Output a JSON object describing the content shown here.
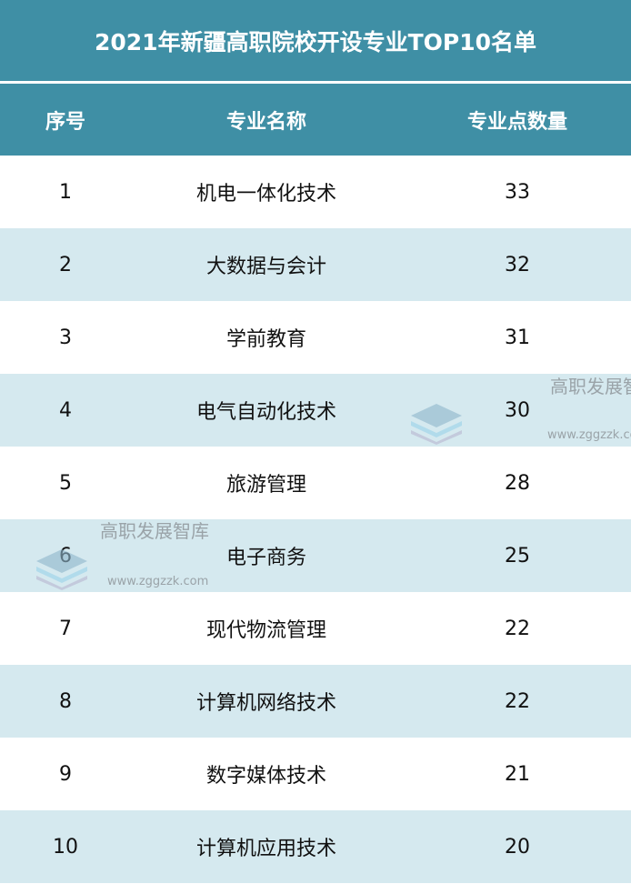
{
  "chart_data": {
    "type": "table",
    "title": "2021年新疆高职院校开设专业TOP10名单",
    "columns": [
      "序号",
      "专业名称",
      "专业点数量"
    ],
    "rows": [
      [
        "1",
        "机电一体化技术",
        "33"
      ],
      [
        "2",
        "大数据与会计",
        "32"
      ],
      [
        "3",
        "学前教育",
        "31"
      ],
      [
        "4",
        "电气自动化技术",
        "30"
      ],
      [
        "5",
        "旅游管理",
        "28"
      ],
      [
        "6",
        "电子商务",
        "25"
      ],
      [
        "7",
        "现代物流管理",
        "22"
      ],
      [
        "8",
        "计算机网络技术",
        "22"
      ],
      [
        "9",
        "数字媒体技术",
        "21"
      ],
      [
        "10",
        "计算机应用技术",
        "20"
      ]
    ]
  },
  "watermark": {
    "name": "高职发展智库",
    "url": "www.zggzzk.com"
  },
  "colors": {
    "header": "#3f8fa5",
    "stripe": "#d5e9ef"
  }
}
